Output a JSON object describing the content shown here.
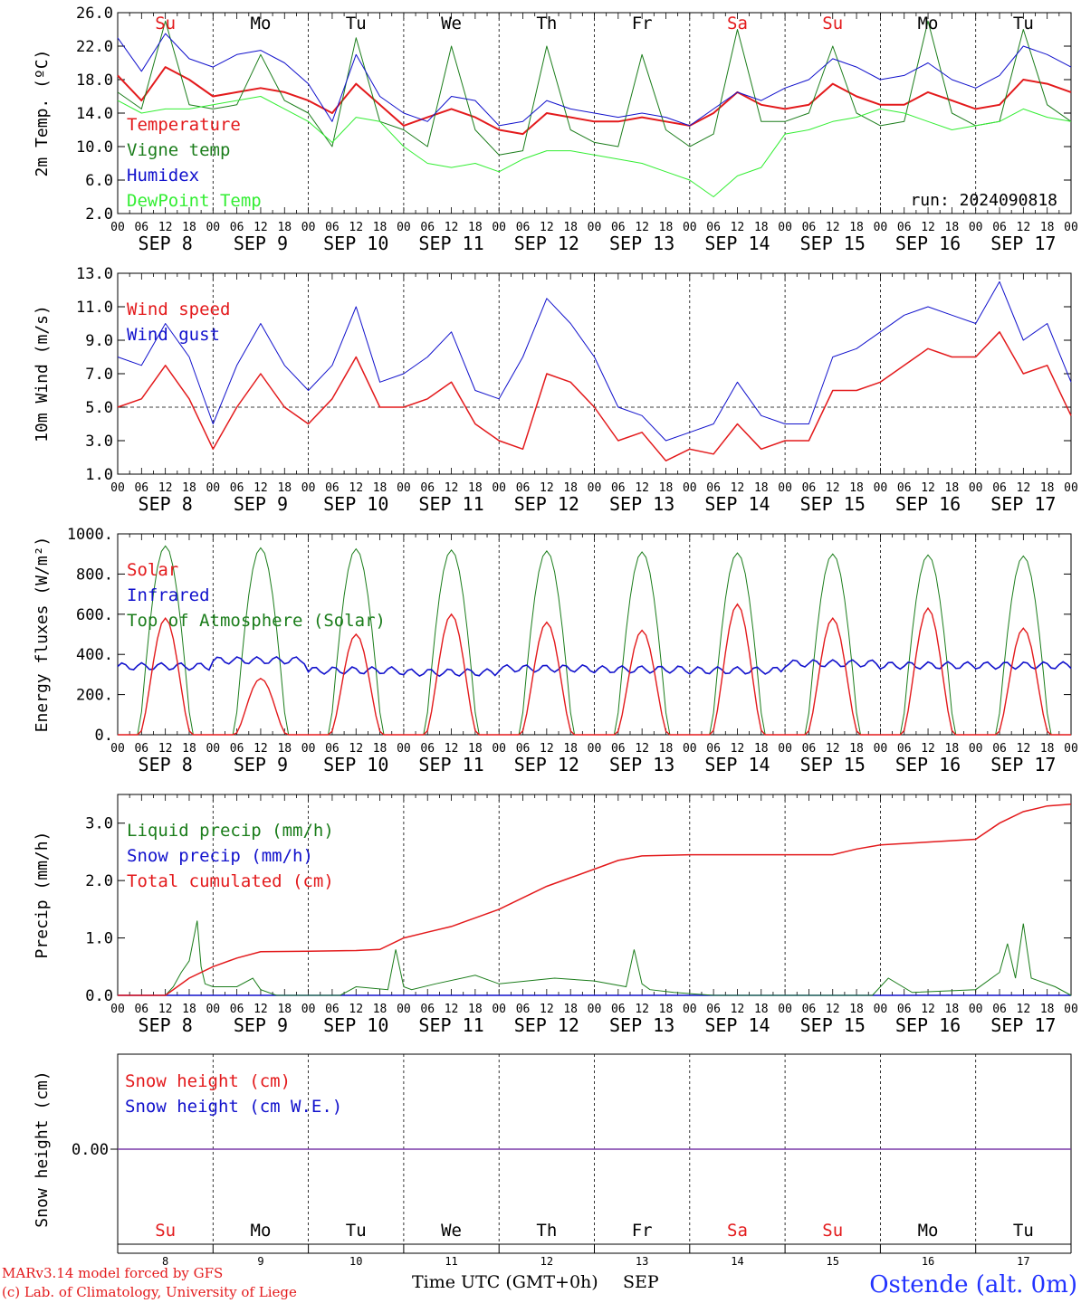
{
  "meta": {
    "run_label": "run: 2024090818",
    "footer_line1": "MARv3.14 model forced by GFS",
    "footer_line2": "(c) Lab. of Climatology, University of Liege",
    "xaxis_title": "Time UTC (GMT+0h)",
    "month_label": "SEP",
    "station": "Ostende (alt. 0m)"
  },
  "colors": {
    "red": "#e31a1c",
    "green": "#1b7d1b",
    "blue": "#1111cc",
    "lightgreen": "#33ee33",
    "purple": "#7a3aa8",
    "station": "#2233ff"
  },
  "days": {
    "weekday": [
      "Su",
      "Mo",
      "Tu",
      "We",
      "Th",
      "Fr",
      "Sa",
      "Su",
      "Mo",
      "Tu"
    ],
    "weekday_color": [
      "red",
      "black",
      "black",
      "black",
      "black",
      "black",
      "red",
      "red",
      "black",
      "black"
    ],
    "date_label": [
      "SEP 8",
      "SEP 9",
      "SEP 10",
      "SEP 11",
      "SEP 12",
      "SEP 13",
      "SEP 14",
      "SEP 15",
      "SEP 16",
      "SEP 17"
    ],
    "day_number": [
      "8",
      "9",
      "10",
      "11",
      "12",
      "13",
      "14",
      "15",
      "16",
      "17"
    ],
    "hour_labels": [
      "00",
      "06",
      "12",
      "18"
    ],
    "end_hour_label": "00"
  },
  "chart_data": [
    {
      "type": "line",
      "id": "temp",
      "ylabel": "2m Temp. (ºC)",
      "ylim": [
        2,
        26
      ],
      "yticks": [
        "2.0",
        "6.0",
        "10.0",
        "14.0",
        "18.0",
        "22.0",
        "26.0"
      ],
      "x_hours": [
        0,
        6,
        12,
        18,
        24,
        30,
        36,
        42,
        48,
        54,
        60,
        66,
        72,
        78,
        84,
        90,
        96,
        102,
        108,
        114,
        120,
        126,
        132,
        138,
        144,
        150,
        156,
        162,
        168,
        174,
        180,
        186,
        192,
        198,
        204,
        210,
        216,
        222,
        228,
        234,
        240
      ],
      "series": [
        {
          "name": "Temperature",
          "color": "red",
          "width": 2,
          "values": [
            18.5,
            15.5,
            19.5,
            18.0,
            16.0,
            16.5,
            17.0,
            16.5,
            15.5,
            14.0,
            17.5,
            15.0,
            12.5,
            13.5,
            14.5,
            13.5,
            12.0,
            11.5,
            14.0,
            13.5,
            13.0,
            13.0,
            13.5,
            13.0,
            12.5,
            14.0,
            16.5,
            15.0,
            14.5,
            15.0,
            17.5,
            16.0,
            15.0,
            15.0,
            16.5,
            15.5,
            14.5,
            15.0,
            18.0,
            17.5,
            16.5
          ]
        },
        {
          "name": "Vigne temp",
          "color": "green",
          "width": 1,
          "values": [
            16.5,
            14.5,
            25.0,
            15.0,
            14.5,
            15.0,
            21.0,
            15.5,
            14.0,
            10.0,
            23.0,
            13.0,
            12.0,
            10.0,
            22.0,
            12.0,
            9.0,
            9.5,
            22.0,
            12.0,
            10.5,
            10.0,
            21.0,
            12.0,
            10.0,
            11.5,
            24.0,
            13.0,
            13.0,
            14.0,
            22.0,
            14.0,
            12.5,
            13.0,
            25.0,
            14.0,
            12.5,
            13.0,
            24.0,
            15.0,
            13.0
          ]
        },
        {
          "name": "Humidex",
          "color": "blue",
          "width": 1,
          "values": [
            23.0,
            19.0,
            23.5,
            20.5,
            19.5,
            21.0,
            21.5,
            20.0,
            17.5,
            13.0,
            21.0,
            16.0,
            14.0,
            13.0,
            16.0,
            15.5,
            12.5,
            13.0,
            15.5,
            14.5,
            14.0,
            13.5,
            14.0,
            13.5,
            12.5,
            14.5,
            16.5,
            15.5,
            17.0,
            18.0,
            20.5,
            19.5,
            18.0,
            18.5,
            20.0,
            18.0,
            17.0,
            18.5,
            22.0,
            21.0,
            19.5
          ]
        },
        {
          "name": "DewPoint Temp",
          "color": "lightgreen",
          "width": 1,
          "values": [
            15.5,
            14.0,
            14.5,
            14.5,
            15.0,
            15.5,
            16.0,
            14.5,
            13.0,
            10.5,
            13.5,
            13.0,
            10.0,
            8.0,
            7.5,
            8.0,
            7.0,
            8.5,
            9.5,
            9.5,
            9.0,
            8.5,
            8.0,
            7.0,
            6.0,
            4.0,
            6.5,
            7.5,
            11.5,
            12.0,
            13.0,
            13.5,
            14.5,
            14.0,
            13.0,
            12.0,
            12.5,
            13.0,
            14.5,
            13.5,
            13.0
          ]
        }
      ]
    },
    {
      "type": "line",
      "id": "wind",
      "ylabel": "10m Wind (m/s)",
      "ylim": [
        1,
        13
      ],
      "yticks": [
        "1.0",
        "3.0",
        "5.0",
        "7.0",
        "9.0",
        "11.0",
        "13.0"
      ],
      "ref_line": 5,
      "x_hours": [
        0,
        6,
        12,
        18,
        24,
        30,
        36,
        42,
        48,
        54,
        60,
        66,
        72,
        78,
        84,
        90,
        96,
        102,
        108,
        114,
        120,
        126,
        132,
        138,
        144,
        150,
        156,
        162,
        168,
        174,
        180,
        186,
        192,
        198,
        204,
        210,
        216,
        222,
        228,
        234,
        240
      ],
      "series": [
        {
          "name": "Wind speed",
          "color": "red",
          "width": 1.5,
          "values": [
            5.0,
            5.5,
            7.5,
            5.5,
            2.5,
            5.0,
            7.0,
            5.0,
            4.0,
            5.5,
            8.0,
            5.0,
            5.0,
            5.5,
            6.5,
            4.0,
            3.0,
            2.5,
            7.0,
            6.5,
            5.0,
            3.0,
            3.5,
            1.8,
            2.5,
            2.2,
            4.0,
            2.5,
            3.0,
            3.0,
            6.0,
            6.0,
            6.5,
            7.5,
            8.5,
            8.0,
            8.0,
            9.5,
            7.0,
            7.5,
            4.5
          ]
        },
        {
          "name": "Wind gust",
          "color": "blue",
          "width": 1,
          "values": [
            8.0,
            7.5,
            10.0,
            8.0,
            4.0,
            7.5,
            10.0,
            7.5,
            6.0,
            7.5,
            11.0,
            6.5,
            7.0,
            8.0,
            9.5,
            6.0,
            5.5,
            8.0,
            11.5,
            10.0,
            8.0,
            5.0,
            4.5,
            3.0,
            3.5,
            4.0,
            6.5,
            4.5,
            4.0,
            4.0,
            8.0,
            8.5,
            9.5,
            10.5,
            11.0,
            10.5,
            10.0,
            12.5,
            9.0,
            10.0,
            6.5
          ]
        }
      ]
    },
    {
      "type": "line",
      "id": "flux",
      "ylabel": "Energy fluxes (W/m²)",
      "ylim": [
        0,
        1000
      ],
      "yticks": [
        "0.",
        "200.",
        "400.",
        "600.",
        "800.",
        "1000."
      ],
      "diurnal": {
        "sunrise": 5.5,
        "sunset": 18.5,
        "toa_peak": [
          940,
          930,
          925,
          920,
          915,
          910,
          905,
          900,
          895,
          890
        ],
        "solar_peak": [
          580,
          280,
          500,
          600,
          560,
          520,
          650,
          580,
          630,
          530
        ],
        "infrared": [
          340,
          370,
          320,
          310,
          330,
          325,
          320,
          355,
          345,
          345
        ]
      },
      "series": [
        {
          "name": "Solar",
          "color": "red"
        },
        {
          "name": "Infrared",
          "color": "blue"
        },
        {
          "name": "Top of Atmosphere (Solar)",
          "color": "green"
        }
      ]
    },
    {
      "type": "line",
      "id": "precip",
      "ylabel": "Precip (mm/h)",
      "ylim": [
        0,
        3.5
      ],
      "yticks": [
        "0.0",
        "1.0",
        "2.0",
        "3.0"
      ],
      "cumulated": {
        "x_hours": [
          0,
          12,
          18,
          24,
          30,
          36,
          48,
          60,
          66,
          72,
          78,
          84,
          90,
          96,
          102,
          108,
          114,
          120,
          126,
          132,
          144,
          156,
          168,
          180,
          186,
          192,
          204,
          216,
          222,
          228,
          234,
          240
        ],
        "values": [
          0,
          0,
          0.3,
          0.5,
          0.65,
          0.76,
          0.77,
          0.78,
          0.8,
          1.0,
          1.1,
          1.2,
          1.35,
          1.5,
          1.7,
          1.9,
          2.05,
          2.2,
          2.35,
          2.43,
          2.45,
          2.45,
          2.45,
          2.45,
          2.55,
          2.62,
          2.67,
          2.72,
          3.0,
          3.2,
          3.3,
          3.33
        ]
      },
      "liquid": {
        "x_hours": [
          0,
          12,
          14,
          16,
          18,
          20,
          21,
          22,
          24,
          30,
          34,
          36,
          40,
          48,
          56,
          60,
          68,
          70,
          72,
          74,
          80,
          90,
          96,
          110,
          120,
          128,
          130,
          132,
          134,
          140,
          150,
          190,
          194,
          200,
          216,
          222,
          224,
          226,
          228,
          230,
          236,
          240
        ],
        "values": [
          0,
          0,
          0.15,
          0.4,
          0.6,
          1.3,
          0.5,
          0.2,
          0.15,
          0.15,
          0.3,
          0.1,
          0,
          0,
          0,
          0.15,
          0.1,
          0.8,
          0.15,
          0.1,
          0.2,
          0.35,
          0.2,
          0.3,
          0.25,
          0.15,
          0.8,
          0.2,
          0.1,
          0.05,
          0,
          0,
          0.3,
          0.05,
          0.1,
          0.4,
          0.9,
          0.3,
          1.25,
          0.3,
          0.15,
          0
        ]
      },
      "series": [
        {
          "name": "Liquid precip (mm/h)",
          "color": "green"
        },
        {
          "name": "Snow precip (mm/h)",
          "color": "blue"
        },
        {
          "name": "Total cumulated (cm)",
          "color": "red"
        }
      ]
    },
    {
      "type": "line",
      "id": "snow",
      "ylabel": "Snow height (cm)",
      "yticks": [
        "0.00"
      ],
      "values": [
        0,
        0
      ],
      "series": [
        {
          "name": "Snow height (cm)",
          "color": "red"
        },
        {
          "name": "Snow height (cm W.E.)",
          "color": "blue"
        }
      ]
    }
  ]
}
